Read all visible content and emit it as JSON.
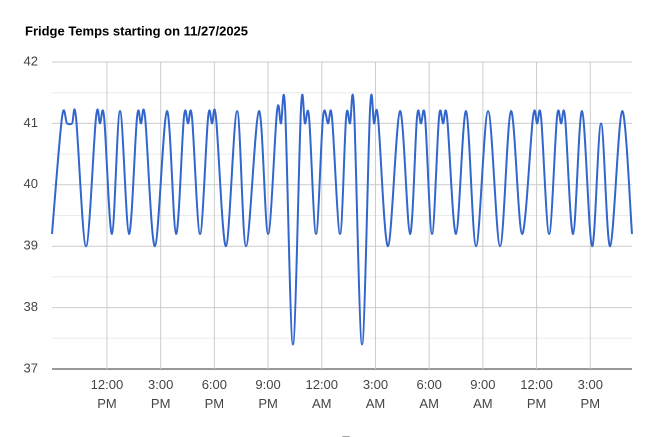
{
  "chart_data": {
    "type": "line",
    "title": "Fridge Temps starting on 11/27/2025",
    "x": [
      8.93,
      9.49,
      9.77,
      10.05,
      10.27,
      10.83,
      11.39,
      11.61,
      11.84,
      12.28,
      12.73,
      13.23,
      13.68,
      13.9,
      14.13,
      14.68,
      15.35,
      15.86,
      16.3,
      16.53,
      16.75,
      17.2,
      17.65,
      17.87,
      18.09,
      18.65,
      19.27,
      19.77,
      20.49,
      21.0,
      21.5,
      21.72,
      21.95,
      22.39,
      22.84,
      23.06,
      23.29,
      23.68,
      24.07,
      24.35,
      24.57,
      25.02,
      25.36,
      25.58,
      25.8,
      26.25,
      26.7,
      26.92,
      27.14,
      27.7,
      28.37,
      28.93,
      29.32,
      29.54,
      29.77,
      30.16,
      30.55,
      30.78,
      31.0,
      31.5,
      32.06,
      32.62,
      33.29,
      33.96,
      34.57,
      35.19,
      35.8,
      36.03,
      36.25,
      36.7,
      37.14,
      37.37,
      37.59,
      38.04,
      38.54,
      39.1,
      39.6,
      40.11,
      40.78,
      41.33
    ],
    "series": [
      {
        "name": "Temp",
        "color": "#3366cc",
        "values": [
          39.2,
          41.1,
          41.0,
          41.0,
          41.1,
          39.0,
          41.1,
          41.0,
          41.1,
          39.2,
          41.2,
          39.2,
          41.1,
          41.0,
          41.1,
          39.0,
          41.2,
          39.2,
          41.1,
          41.0,
          41.1,
          39.2,
          41.1,
          41.0,
          41.1,
          39.0,
          41.2,
          39.0,
          41.2,
          39.2,
          41.2,
          41.0,
          41.25,
          37.4,
          41.25,
          41.0,
          41.1,
          39.2,
          41.1,
          41.0,
          41.1,
          39.2,
          41.1,
          41.0,
          41.25,
          37.4,
          41.25,
          41.0,
          41.1,
          39.0,
          41.2,
          39.2,
          41.1,
          41.0,
          41.1,
          39.2,
          41.1,
          41.0,
          41.1,
          39.2,
          41.2,
          39.0,
          41.2,
          39.0,
          41.2,
          39.2,
          41.1,
          41.0,
          41.1,
          39.2,
          41.1,
          41.0,
          41.1,
          39.2,
          41.2,
          39.0,
          41.0,
          39.0,
          41.2,
          39.2
        ]
      }
    ],
    "xlim": [
      8.93,
      41.33
    ],
    "xticks": [
      {
        "value": 12,
        "label": "12:00 PM"
      },
      {
        "value": 15,
        "label": "3:00 PM"
      },
      {
        "value": 18,
        "label": "6:00 PM"
      },
      {
        "value": 21,
        "label": "9:00 PM"
      },
      {
        "value": 24,
        "label": "12:00 AM"
      },
      {
        "value": 27,
        "label": "3:00 AM"
      },
      {
        "value": 30,
        "label": "6:00 AM"
      },
      {
        "value": 33,
        "label": "9:00 AM"
      },
      {
        "value": 36,
        "label": "12:00 PM"
      },
      {
        "value": 39,
        "label": "3:00 PM"
      }
    ],
    "ylim": [
      37,
      42
    ],
    "yticks": [
      37,
      38,
      39,
      40,
      41,
      42
    ],
    "grid": true,
    "legend": "bottom"
  }
}
